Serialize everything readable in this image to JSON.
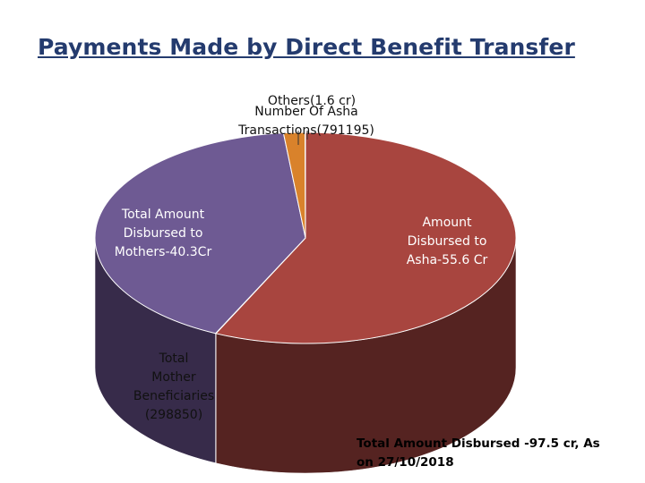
{
  "title": "Payments Made by Direct Benefit Transfer",
  "chart_data": {
    "type": "pie",
    "style": "3d",
    "slices": [
      {
        "label": "Amount Disbursed to Asha-55.6 Cr",
        "value": 55.6,
        "color": "#a8453f",
        "side_color": "#552321",
        "text_color": "#ffffff"
      },
      {
        "label": "Total Mother Beneficiaries (298850)",
        "value": 0.03,
        "color": "#c9c9c9",
        "side_color": "#8a8a8a",
        "text_color": "#111111"
      },
      {
        "label": "Total Amount Disbursed to Mothers-40.3Cr",
        "value": 40.3,
        "color": "#6e5a93",
        "side_color": "#372b4a",
        "text_color": "#ffffff"
      },
      {
        "label": "Others(1.6 cr)",
        "value": 1.6,
        "color": "#d9822b",
        "side_color": "#7a4515",
        "text_color": "#111111"
      },
      {
        "label": "Number Of Asha Transactions(791195)",
        "value": 0.03,
        "color": "#c9c9c9",
        "side_color": "#8a8a8a",
        "text_color": "#111111"
      }
    ],
    "labels_text": {
      "asha": [
        "Amount",
        "Disbursed to",
        "Asha-55.6 Cr"
      ],
      "mothers": [
        "Total Amount",
        "Disbursed to",
        "Mothers-40.3Cr"
      ],
      "others": "Others(1.6 cr)",
      "asha_txn": [
        "Number Of Asha",
        "Transactions(791195)"
      ],
      "mother_ben": [
        "Total",
        "Mother",
        "Beneficiaries",
        "(298850)"
      ]
    }
  },
  "footer": [
    "Total Amount Disbursed -97.5 cr, As",
    "on 27/10/2018"
  ]
}
